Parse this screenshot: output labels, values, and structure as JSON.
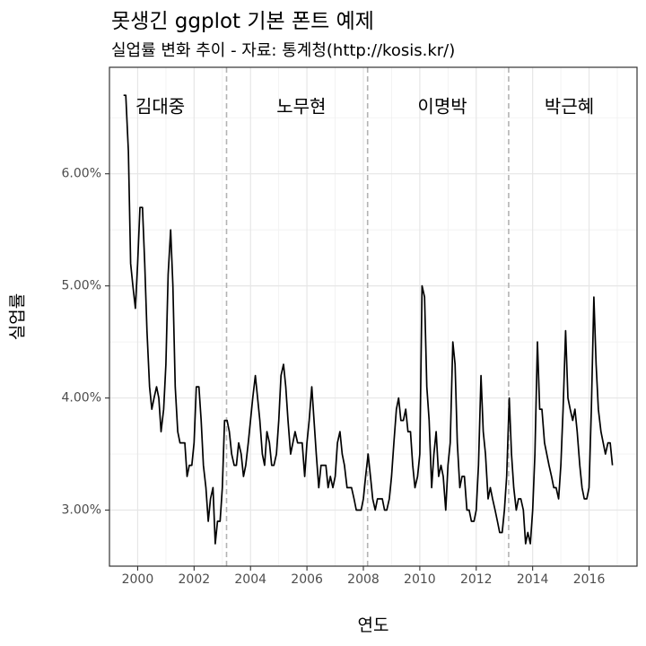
{
  "chart_data": {
    "type": "line",
    "title": "못생긴 ggplot 기본 폰트 예제",
    "subtitle": "실업률 변화 추이 - 자료: 통계청(http://kosis.kr/)",
    "xlabel": "연도",
    "ylabel": "실업률",
    "xlim": [
      1999.0,
      2017.7
    ],
    "ylim": [
      2.5,
      6.95
    ],
    "x_ticks": [
      2000,
      2002,
      2004,
      2006,
      2008,
      2010,
      2012,
      2014,
      2016
    ],
    "x_tick_labels": [
      "2000",
      "2002",
      "2004",
      "2006",
      "2008",
      "2010",
      "2012",
      "2014",
      "2016"
    ],
    "y_ticks": [
      3,
      4,
      5,
      6
    ],
    "y_tick_labels": [
      "3.00%",
      "4.00%",
      "5.00%",
      "6.00%"
    ],
    "grid": true,
    "vlines": [
      {
        "x": 2003.15,
        "style": "dashed",
        "color": "#b3b3b3"
      },
      {
        "x": 2008.15,
        "style": "dashed",
        "color": "#b3b3b3"
      },
      {
        "x": 2013.15,
        "style": "dashed",
        "color": "#b3b3b3"
      }
    ],
    "annotations": [
      {
        "text": "김대중",
        "x": 2000.8,
        "y": 6.6
      },
      {
        "text": "노무현",
        "x": 2005.8,
        "y": 6.6
      },
      {
        "text": "이명박",
        "x": 2010.8,
        "y": 6.6
      },
      {
        "text": "박근혜",
        "x": 2015.3,
        "y": 6.6
      }
    ],
    "series": [
      {
        "color": "#000000",
        "x": [
          1999.5,
          1999.58,
          1999.67,
          1999.75,
          1999.83,
          1999.92,
          2000.0,
          2000.08,
          2000.17,
          2000.25,
          2000.33,
          2000.42,
          2000.5,
          2000.58,
          2000.67,
          2000.75,
          2000.83,
          2000.92,
          2001.0,
          2001.08,
          2001.17,
          2001.25,
          2001.33,
          2001.42,
          2001.5,
          2001.58,
          2001.67,
          2001.75,
          2001.83,
          2001.92,
          2002.0,
          2002.08,
          2002.17,
          2002.25,
          2002.33,
          2002.42,
          2002.5,
          2002.58,
          2002.67,
          2002.75,
          2002.83,
          2002.92,
          2003.0,
          2003.08,
          2003.17,
          2003.25,
          2003.33,
          2003.42,
          2003.5,
          2003.58,
          2003.67,
          2003.75,
          2003.83,
          2003.92,
          2004.0,
          2004.08,
          2004.17,
          2004.25,
          2004.33,
          2004.42,
          2004.5,
          2004.58,
          2004.67,
          2004.75,
          2004.83,
          2004.92,
          2005.0,
          2005.08,
          2005.17,
          2005.25,
          2005.33,
          2005.42,
          2005.5,
          2005.58,
          2005.67,
          2005.75,
          2005.83,
          2005.92,
          2006.0,
          2006.08,
          2006.17,
          2006.25,
          2006.33,
          2006.42,
          2006.5,
          2006.58,
          2006.67,
          2006.75,
          2006.83,
          2006.92,
          2007.0,
          2007.08,
          2007.17,
          2007.25,
          2007.33,
          2007.42,
          2007.5,
          2007.58,
          2007.67,
          2007.75,
          2007.83,
          2007.92,
          2008.0,
          2008.08,
          2008.17,
          2008.25,
          2008.33,
          2008.42,
          2008.5,
          2008.58,
          2008.67,
          2008.75,
          2008.83,
          2008.92,
          2009.0,
          2009.08,
          2009.17,
          2009.25,
          2009.33,
          2009.42,
          2009.5,
          2009.58,
          2009.67,
          2009.75,
          2009.83,
          2009.92,
          2010.0,
          2010.08,
          2010.17,
          2010.25,
          2010.33,
          2010.42,
          2010.5,
          2010.58,
          2010.67,
          2010.75,
          2010.83,
          2010.92,
          2011.0,
          2011.08,
          2011.17,
          2011.25,
          2011.33,
          2011.42,
          2011.5,
          2011.58,
          2011.67,
          2011.75,
          2011.83,
          2011.92,
          2012.0,
          2012.08,
          2012.17,
          2012.25,
          2012.33,
          2012.42,
          2012.5,
          2012.58,
          2012.67,
          2012.75,
          2012.83,
          2012.92,
          2013.0,
          2013.08,
          2013.17,
          2013.25,
          2013.33,
          2013.42,
          2013.5,
          2013.58,
          2013.67,
          2013.75,
          2013.83,
          2013.92,
          2014.0,
          2014.08,
          2014.17,
          2014.25,
          2014.33,
          2014.42,
          2014.5,
          2014.58,
          2014.67,
          2014.75,
          2014.83,
          2014.92,
          2015.0,
          2015.08,
          2015.17,
          2015.25,
          2015.33,
          2015.42,
          2015.5,
          2015.58,
          2015.67,
          2015.75,
          2015.83,
          2015.92,
          2016.0,
          2016.08,
          2016.17,
          2016.25,
          2016.33,
          2016.42,
          2016.5,
          2016.58,
          2016.67,
          2016.75,
          2016.83
        ],
        "y": [
          6.7,
          6.7,
          6.2,
          5.2,
          5.0,
          4.8,
          5.2,
          5.7,
          5.7,
          5.2,
          4.6,
          4.1,
          3.9,
          4.0,
          4.1,
          4.0,
          3.7,
          3.9,
          4.3,
          5.1,
          5.5,
          5.0,
          4.1,
          3.7,
          3.6,
          3.6,
          3.6,
          3.3,
          3.4,
          3.4,
          3.6,
          4.1,
          4.1,
          3.8,
          3.4,
          3.2,
          2.9,
          3.1,
          3.2,
          2.7,
          2.9,
          2.9,
          3.2,
          3.8,
          3.8,
          3.7,
          3.5,
          3.4,
          3.4,
          3.6,
          3.5,
          3.3,
          3.4,
          3.6,
          3.8,
          4.0,
          4.2,
          4.0,
          3.8,
          3.5,
          3.4,
          3.7,
          3.6,
          3.4,
          3.4,
          3.5,
          3.8,
          4.2,
          4.3,
          4.1,
          3.8,
          3.5,
          3.6,
          3.7,
          3.6,
          3.6,
          3.6,
          3.3,
          3.6,
          3.8,
          4.1,
          3.8,
          3.5,
          3.2,
          3.4,
          3.4,
          3.4,
          3.2,
          3.3,
          3.2,
          3.3,
          3.6,
          3.7,
          3.5,
          3.4,
          3.2,
          3.2,
          3.2,
          3.1,
          3.0,
          3.0,
          3.0,
          3.1,
          3.3,
          3.5,
          3.3,
          3.1,
          3.0,
          3.1,
          3.1,
          3.1,
          3.0,
          3.0,
          3.1,
          3.3,
          3.6,
          3.9,
          4.0,
          3.8,
          3.8,
          3.9,
          3.7,
          3.7,
          3.4,
          3.2,
          3.3,
          3.5,
          5.0,
          4.9,
          4.1,
          3.8,
          3.2,
          3.5,
          3.7,
          3.3,
          3.4,
          3.3,
          3.0,
          3.4,
          3.6,
          4.5,
          4.3,
          3.6,
          3.2,
          3.3,
          3.3,
          3.0,
          3.0,
          2.9,
          2.9,
          3.0,
          3.4,
          4.2,
          3.7,
          3.5,
          3.1,
          3.2,
          3.1,
          3.0,
          2.9,
          2.8,
          2.8,
          3.0,
          3.3,
          4.0,
          3.5,
          3.2,
          3.0,
          3.1,
          3.1,
          3.0,
          2.7,
          2.8,
          2.7,
          3.0,
          3.5,
          4.5,
          3.9,
          3.9,
          3.6,
          3.5,
          3.4,
          3.3,
          3.2,
          3.2,
          3.1,
          3.4,
          3.9,
          4.6,
          4.0,
          3.9,
          3.8,
          3.9,
          3.7,
          3.4,
          3.2,
          3.1,
          3.1,
          3.2,
          3.9,
          4.9,
          4.3,
          3.9,
          3.7,
          3.6,
          3.5,
          3.6,
          3.6,
          3.4
        ]
      }
    ]
  }
}
